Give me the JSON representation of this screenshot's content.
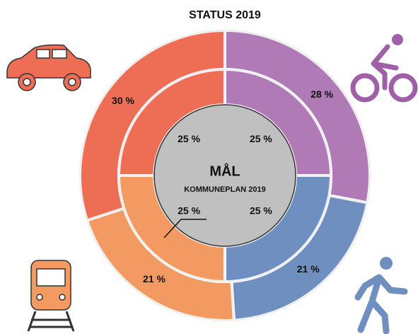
{
  "chart_data": {
    "type": "donut",
    "title": "STATUS 2019",
    "center_label": "MÅL",
    "center_sublabel": "KOMMUNEPLAN 2019",
    "colors": [
      "#b07ab6",
      "#6e8fbf",
      "#f29a62",
      "#ee6e55"
    ],
    "series": [
      {
        "values": [
          28,
          21,
          21,
          30
        ],
        "value_labels": [
          "28 %",
          "21 %",
          "21 %",
          "30 %"
        ]
      },
      {
        "values": [
          25,
          25,
          25,
          25
        ],
        "value_labels": [
          "25 %",
          "25 %",
          "25 %",
          "25 %"
        ]
      }
    ]
  }
}
